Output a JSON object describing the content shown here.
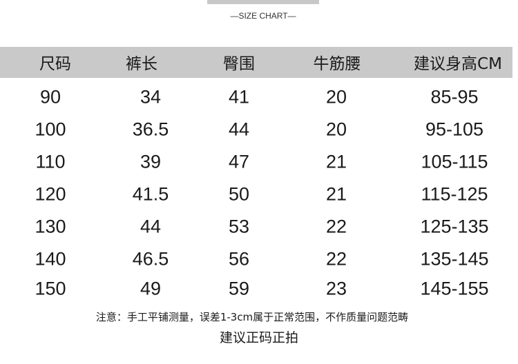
{
  "subtitle": "—SIZE CHART—",
  "table": {
    "headers": [
      "尺码",
      "裤长",
      "臀围",
      "牛筋腰",
      "建议身高CM"
    ],
    "rows": [
      [
        "90",
        "34",
        "41",
        "20",
        "85-95"
      ],
      [
        "100",
        "36.5",
        "44",
        "20",
        "95-105"
      ],
      [
        "110",
        "39",
        "47",
        "21",
        "105-115"
      ],
      [
        "120",
        "41.5",
        "50",
        "21",
        "115-125"
      ],
      [
        "130",
        "44",
        "53",
        "22",
        "125-135"
      ],
      [
        "140",
        "46.5",
        "56",
        "22",
        "135-145"
      ],
      [
        "150",
        "49",
        "59",
        "23",
        "145-155"
      ]
    ]
  },
  "note": "注意：手工平铺测量，误差1-3cm属于正常范围，不作质量问题范畴",
  "recommendation": "建议正码正拍",
  "colors": {
    "header_bg": "#cac9ca"
  }
}
